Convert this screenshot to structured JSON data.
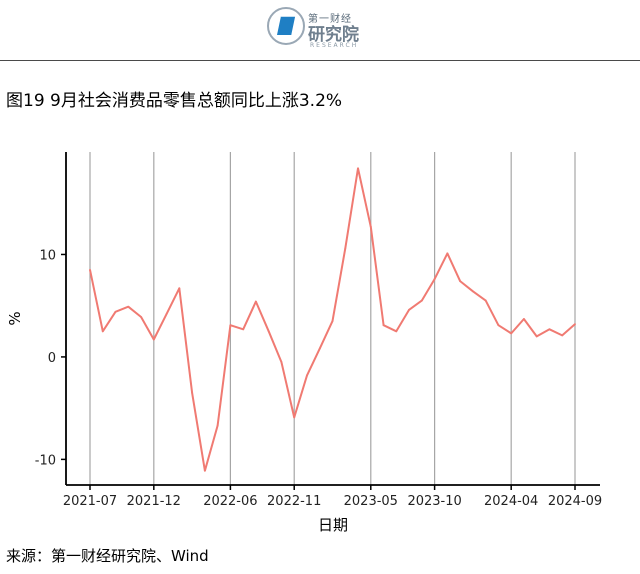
{
  "brand": {
    "logo_top": "第一财经",
    "logo_main": "研究院",
    "logo_sub": "RESEARCH"
  },
  "title": "图19 9月社会消费品零售总额同比上涨3.2%",
  "source": "来源：第一财经研究院、Wind",
  "colors": {
    "line": "#F07A72",
    "grid": "#a6a6a6",
    "axis": "#000000"
  },
  "chart_data": {
    "type": "line",
    "xlabel": "日期",
    "ylabel": "%",
    "ylim": [
      -12.5,
      20
    ],
    "yticks": [
      -10,
      0,
      10
    ],
    "ytick_labels": [
      "-10",
      "0",
      "10"
    ],
    "grid": "vertical lines at x tick dates",
    "x_ticks": [
      "2021-07",
      "2021-12",
      "2022-06",
      "2022-11",
      "2023-05",
      "2023-10",
      "2024-04",
      "2024-09"
    ],
    "x": [
      "2021-07",
      "2021-08",
      "2021-09",
      "2021-10",
      "2021-11",
      "2021-12",
      "2022-01",
      "2022-02",
      "2022-03",
      "2022-04",
      "2022-05",
      "2022-06",
      "2022-07",
      "2022-08",
      "2022-09",
      "2022-10",
      "2022-11",
      "2022-12",
      "2023-01",
      "2023-02",
      "2023-03",
      "2023-04",
      "2023-05",
      "2023-06",
      "2023-07",
      "2023-08",
      "2023-09",
      "2023-10",
      "2023-11",
      "2023-12",
      "2024-01",
      "2024-02",
      "2024-03",
      "2024-04",
      "2024-05",
      "2024-06",
      "2024-07",
      "2024-08",
      "2024-09"
    ],
    "series": [
      {
        "values": [
          8.5,
          2.5,
          4.4,
          4.9,
          3.9,
          1.7,
          4.2,
          6.7,
          -3.5,
          -11.1,
          -6.7,
          3.1,
          2.7,
          5.4,
          2.5,
          -0.5,
          -5.9,
          -1.8,
          0.8,
          3.5,
          10.6,
          18.4,
          12.7,
          3.1,
          2.5,
          4.6,
          5.5,
          7.6,
          10.1,
          7.4,
          6.4,
          5.5,
          3.1,
          2.3,
          3.7,
          2.0,
          2.7,
          2.1,
          3.2
        ]
      }
    ]
  }
}
